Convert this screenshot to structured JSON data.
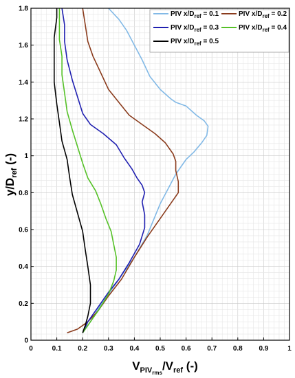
{
  "chart_data": {
    "type": "line",
    "xlabel": "V_PIVrms/V_ref (-)",
    "ylabel": "y/D_ref (-)",
    "xlim": [
      0,
      1
    ],
    "ylim": [
      0,
      1.8
    ],
    "x_ticks": [
      "0",
      "0.1",
      "0.2",
      "0.3",
      "0.4",
      "0.5",
      "0.6",
      "0.7",
      "0.8",
      "0.9",
      "1"
    ],
    "y_ticks": [
      "0",
      "0.2",
      "0.4",
      "0.6",
      "0.8",
      "1",
      "1.2",
      "1.4",
      "1.6",
      "1.8"
    ],
    "grid": true,
    "legend_position": "top-right",
    "legend": [
      {
        "label": "PIV x/D",
        "sub": "ref",
        "suffix": " = 0.1",
        "color": "#82b9e6"
      },
      {
        "label": "PIV x/D",
        "sub": "ref",
        "suffix": " = 0.2",
        "color": "#8a3b1c"
      },
      {
        "label": "PIV x/D",
        "sub": "ref",
        "suffix": " = 0.3",
        "color": "#1f1fb0"
      },
      {
        "label": "PIV x/D",
        "sub": "ref",
        "suffix": " = 0.4",
        "color": "#55c127"
      },
      {
        "label": "PIV x/D",
        "sub": "ref",
        "suffix": " = 0.5",
        "color": "#000000"
      }
    ],
    "series": [
      {
        "name": "PIV x/Dref = 0.1",
        "color": "#82b9e6",
        "points": [
          [
            0.2,
            0.04
          ],
          [
            0.23,
            0.1
          ],
          [
            0.26,
            0.17
          ],
          [
            0.3,
            0.25
          ],
          [
            0.35,
            0.35
          ],
          [
            0.4,
            0.45
          ],
          [
            0.45,
            0.57
          ],
          [
            0.5,
            0.74
          ],
          [
            0.53,
            0.82
          ],
          [
            0.56,
            0.9
          ],
          [
            0.6,
            0.98
          ],
          [
            0.63,
            1.02
          ],
          [
            0.66,
            1.07
          ],
          [
            0.68,
            1.11
          ],
          [
            0.685,
            1.16
          ],
          [
            0.67,
            1.19
          ],
          [
            0.64,
            1.22
          ],
          [
            0.6,
            1.27
          ],
          [
            0.56,
            1.29
          ],
          [
            0.54,
            1.31
          ],
          [
            0.5,
            1.36
          ],
          [
            0.46,
            1.43
          ],
          [
            0.43,
            1.52
          ],
          [
            0.4,
            1.6
          ],
          [
            0.37,
            1.68
          ],
          [
            0.34,
            1.74
          ],
          [
            0.3,
            1.8
          ]
        ]
      },
      {
        "name": "PIV x/Dref = 0.2",
        "color": "#8a3b1c",
        "points": [
          [
            0.14,
            0.04
          ],
          [
            0.18,
            0.06
          ],
          [
            0.22,
            0.1
          ],
          [
            0.26,
            0.16
          ],
          [
            0.3,
            0.24
          ],
          [
            0.35,
            0.33
          ],
          [
            0.4,
            0.45
          ],
          [
            0.45,
            0.56
          ],
          [
            0.5,
            0.66
          ],
          [
            0.55,
            0.76
          ],
          [
            0.57,
            0.8
          ],
          [
            0.57,
            0.86
          ],
          [
            0.56,
            0.92
          ],
          [
            0.56,
            0.97
          ],
          [
            0.55,
            1.01
          ],
          [
            0.52,
            1.07
          ],
          [
            0.48,
            1.12
          ],
          [
            0.43,
            1.17
          ],
          [
            0.38,
            1.22
          ],
          [
            0.34,
            1.29
          ],
          [
            0.3,
            1.36
          ],
          [
            0.27,
            1.45
          ],
          [
            0.24,
            1.54
          ],
          [
            0.22,
            1.62
          ],
          [
            0.21,
            1.71
          ],
          [
            0.2,
            1.8
          ]
        ]
      },
      {
        "name": "PIV x/Dref = 0.3",
        "color": "#1f1fb0",
        "points": [
          [
            0.2,
            0.04
          ],
          [
            0.22,
            0.1
          ],
          [
            0.26,
            0.18
          ],
          [
            0.3,
            0.26
          ],
          [
            0.34,
            0.33
          ],
          [
            0.38,
            0.42
          ],
          [
            0.42,
            0.52
          ],
          [
            0.44,
            0.61
          ],
          [
            0.44,
            0.68
          ],
          [
            0.43,
            0.75
          ],
          [
            0.44,
            0.8
          ],
          [
            0.43,
            0.84
          ],
          [
            0.41,
            0.88
          ],
          [
            0.39,
            0.93
          ],
          [
            0.36,
            0.99
          ],
          [
            0.33,
            1.06
          ],
          [
            0.28,
            1.12
          ],
          [
            0.23,
            1.17
          ],
          [
            0.2,
            1.23
          ],
          [
            0.18,
            1.32
          ],
          [
            0.16,
            1.41
          ],
          [
            0.14,
            1.52
          ],
          [
            0.13,
            1.62
          ],
          [
            0.13,
            1.71
          ],
          [
            0.12,
            1.8
          ]
        ]
      },
      {
        "name": "PIV x/Dref = 0.4",
        "color": "#55c127",
        "points": [
          [
            0.2,
            0.04
          ],
          [
            0.22,
            0.08
          ],
          [
            0.26,
            0.16
          ],
          [
            0.3,
            0.25
          ],
          [
            0.32,
            0.32
          ],
          [
            0.33,
            0.38
          ],
          [
            0.33,
            0.45
          ],
          [
            0.32,
            0.52
          ],
          [
            0.31,
            0.59
          ],
          [
            0.29,
            0.66
          ],
          [
            0.27,
            0.74
          ],
          [
            0.25,
            0.81
          ],
          [
            0.22,
            0.88
          ],
          [
            0.2,
            0.96
          ],
          [
            0.18,
            1.05
          ],
          [
            0.16,
            1.14
          ],
          [
            0.14,
            1.24
          ],
          [
            0.13,
            1.34
          ],
          [
            0.12,
            1.44
          ],
          [
            0.12,
            1.54
          ],
          [
            0.11,
            1.63
          ],
          [
            0.11,
            1.72
          ],
          [
            0.11,
            1.8
          ]
        ]
      },
      {
        "name": "PIV x/Dref = 0.5",
        "color": "#000000",
        "points": [
          [
            0.2,
            0.04
          ],
          [
            0.21,
            0.08
          ],
          [
            0.22,
            0.13
          ],
          [
            0.23,
            0.2
          ],
          [
            0.23,
            0.3
          ],
          [
            0.22,
            0.4
          ],
          [
            0.21,
            0.49
          ],
          [
            0.2,
            0.59
          ],
          [
            0.18,
            0.69
          ],
          [
            0.16,
            0.79
          ],
          [
            0.15,
            0.88
          ],
          [
            0.14,
            0.98
          ],
          [
            0.12,
            1.08
          ],
          [
            0.11,
            1.18
          ],
          [
            0.1,
            1.28
          ],
          [
            0.09,
            1.4
          ],
          [
            0.09,
            1.52
          ],
          [
            0.09,
            1.64
          ],
          [
            0.1,
            1.75
          ],
          [
            0.1,
            1.8
          ]
        ]
      }
    ]
  }
}
